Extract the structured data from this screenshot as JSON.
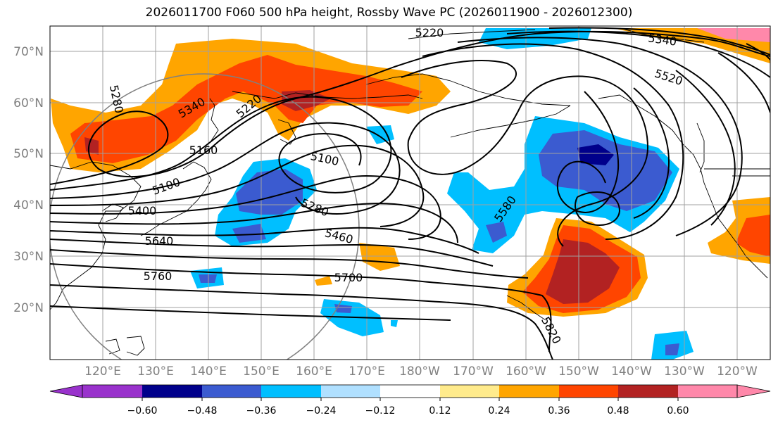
{
  "title": "2026011700 F060 500 hPa height, Rossby Wave PC (2026011900 - 2026012300)",
  "lat_labels": [
    "70°N",
    "60°N",
    "50°N",
    "40°N",
    "30°N",
    "20°N"
  ],
  "lon_labels": [
    "120°E",
    "130°E",
    "140°E",
    "150°E",
    "160°E",
    "170°E",
    "180°W",
    "170°W",
    "160°W",
    "150°W",
    "140°W",
    "130°W",
    "120°W"
  ],
  "contour_labels": [
    "5220",
    "5340",
    "5520",
    "5280",
    "5340",
    "5220",
    "5160",
    "5100",
    "5100",
    "5400",
    "5280",
    "5460",
    "5580",
    "5640",
    "5760",
    "5700",
    "5820"
  ],
  "colorbar": {
    "ticks": [
      "−0.60",
      "−0.48",
      "−0.36",
      "−0.24",
      "−0.12",
      "0.12",
      "0.24",
      "0.36",
      "0.48",
      "0.60"
    ],
    "colors": [
      "#9932cc",
      "#00008b",
      "#3b5bd0",
      "#00bfff",
      "#b0e0ff",
      "#ffffff",
      "#ffeb8c",
      "#ffa500",
      "#ff4500",
      "#b22222",
      "#ff88aa"
    ]
  },
  "map_colors": {
    "land_outline": "#000000",
    "grid": "#a0a0a0",
    "height_contours": "#000000"
  }
}
